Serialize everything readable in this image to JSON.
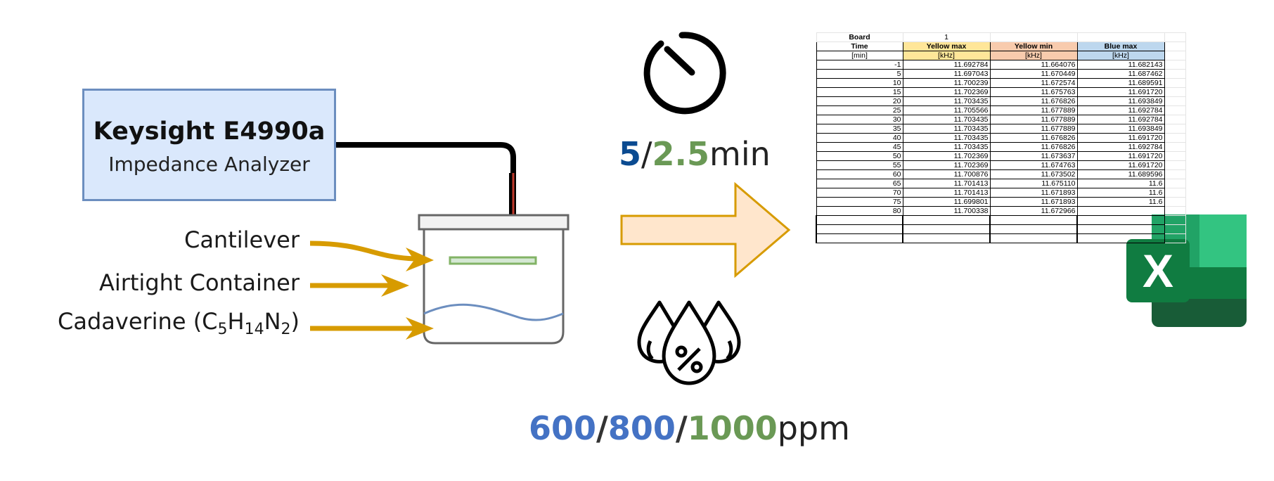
{
  "analyzer": {
    "title": "Keysight E4990a",
    "subtitle": "Impedance Analyzer"
  },
  "labels": {
    "cantilever": "Cantilever",
    "container": "Airtight Container",
    "cadaverine_prefix": "Cadaverine (C",
    "sub5": "5",
    "h": "H",
    "sub14": "14",
    "n": "N",
    "sub2": "2",
    "close": ")"
  },
  "interval": {
    "v1": "5",
    "sep": "/",
    "v2": "2.5",
    "unit": "min"
  },
  "concentration": {
    "v1": "600",
    "sep1": "/",
    "v2": "800",
    "sep2": "/",
    "v3": "1000",
    "unit": "ppm"
  },
  "icons": {
    "timer": "timer-icon",
    "humidity": "humidity-drops-icon",
    "excel": "excel-icon"
  },
  "colors": {
    "arrow": "#d79b00",
    "box_fill": "#dae8fc",
    "box_stroke": "#6c8ebf",
    "cantilever": "#82b366",
    "liquid": "#6c8ebf",
    "big_arrow_fill": "#ffe6cc",
    "big_arrow_stroke": "#d79b00"
  },
  "sheet": {
    "board_label": "Board",
    "board_value": "1",
    "headers": [
      "Time",
      "Yellow max",
      "Yellow min",
      "Blue max"
    ],
    "units": [
      "[min]",
      "[kHz]",
      "[kHz]",
      "[kHz]"
    ],
    "rows": [
      [
        "-1",
        "11.692784",
        "11.664076",
        "11.682143"
      ],
      [
        "5",
        "11.697043",
        "11.670449",
        "11.687462"
      ],
      [
        "10",
        "11.700239",
        "11.672574",
        "11.689591"
      ],
      [
        "15",
        "11.702369",
        "11.675763",
        "11.691720"
      ],
      [
        "20",
        "11.703435",
        "11.676826",
        "11.693849"
      ],
      [
        "25",
        "11.705566",
        "11.677889",
        "11.692784"
      ],
      [
        "30",
        "11.703435",
        "11.677889",
        "11.692784"
      ],
      [
        "35",
        "11.703435",
        "11.677889",
        "11.693849"
      ],
      [
        "40",
        "11.703435",
        "11.676826",
        "11.691720"
      ],
      [
        "45",
        "11.703435",
        "11.676826",
        "11.692784"
      ],
      [
        "50",
        "11.702369",
        "11.673637",
        "11.691720"
      ],
      [
        "55",
        "11.702369",
        "11.674763",
        "11.691720"
      ],
      [
        "60",
        "11.700876",
        "11.673502",
        "11.689596"
      ],
      [
        "65",
        "11.701413",
        "11.675110",
        "11.6"
      ],
      [
        "70",
        "11.701413",
        "11.671893",
        "11.6"
      ],
      [
        "75",
        "11.699801",
        "11.671893",
        "11.6"
      ],
      [
        "80",
        "11.700338",
        "11.672966",
        ""
      ]
    ]
  }
}
